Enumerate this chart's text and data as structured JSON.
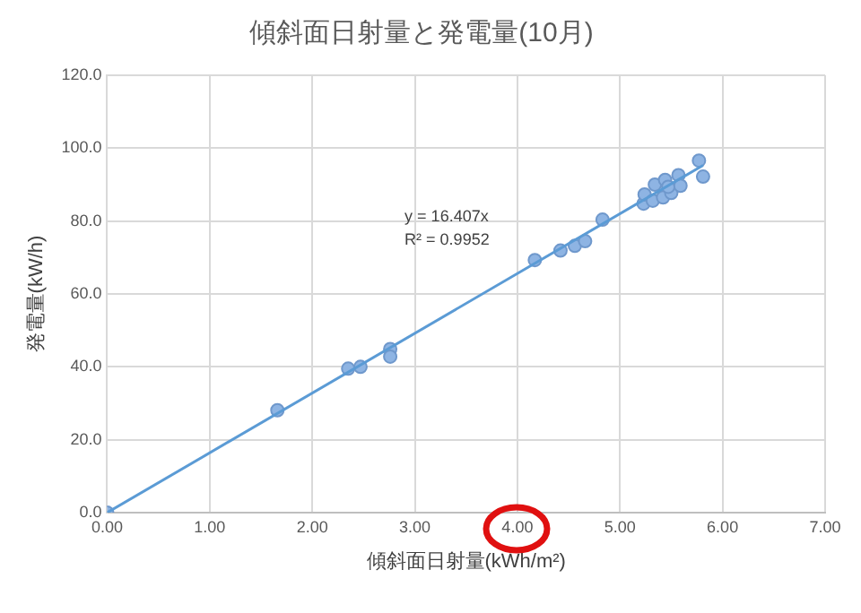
{
  "chart_data": {
    "type": "scatter",
    "title": "傾斜面日射量と発電量(10月)",
    "xlabel": "傾斜面日射量(kWh/m²)",
    "ylabel": "発電量(kW/h)",
    "series": [
      {
        "type": "scatter",
        "color": "#8eb4e3",
        "x": [
          0,
          1.66,
          2.35,
          2.47,
          2.76,
          2.76,
          4.17,
          4.42,
          4.56,
          4.66,
          4.83,
          5.23,
          5.24,
          5.32,
          5.34,
          5.44,
          5.42,
          5.5,
          5.47,
          5.57,
          5.59,
          5.77,
          5.81
        ],
        "values": [
          0,
          28.1,
          39.5,
          40.0,
          44.9,
          42.8,
          69.3,
          71.9,
          73.2,
          74.5,
          80.4,
          84.8,
          87.3,
          85.6,
          90.0,
          91.3,
          86.5,
          87.7,
          89.4,
          92.6,
          89.7,
          96.6,
          92.2
        ]
      },
      {
        "type": "line",
        "marker": "none",
        "color": "#5b9bd5",
        "x": [
          0,
          5.81
        ],
        "values": [
          0,
          95.3
        ]
      }
    ],
    "annotations": [
      "y = 16.407x",
      "R² = 0.9952"
    ],
    "xlim": [
      0,
      7
    ],
    "xticks": [
      {
        "value": 0,
        "label": "0.00"
      },
      {
        "value": 1,
        "label": "1.00"
      },
      {
        "value": 2,
        "label": "2.00"
      },
      {
        "value": 3,
        "label": "3.00"
      },
      {
        "value": 4,
        "label": "4.00"
      },
      {
        "value": 5,
        "label": "5.00"
      },
      {
        "value": 6,
        "label": "6.00"
      },
      {
        "value": 7,
        "label": "7.00"
      }
    ],
    "ylim": [
      0,
      120
    ],
    "yticks": [
      {
        "value": 0,
        "label": "0.0"
      },
      {
        "value": 20,
        "label": "20.0"
      },
      {
        "value": 40,
        "label": "40.0"
      },
      {
        "value": 60,
        "label": "60.0"
      },
      {
        "value": 80,
        "label": "80.0"
      },
      {
        "value": 100,
        "label": "100.0"
      },
      {
        "value": 120,
        "label": "120.0"
      }
    ],
    "grid": true,
    "legend": false,
    "marker": "circle"
  }
}
